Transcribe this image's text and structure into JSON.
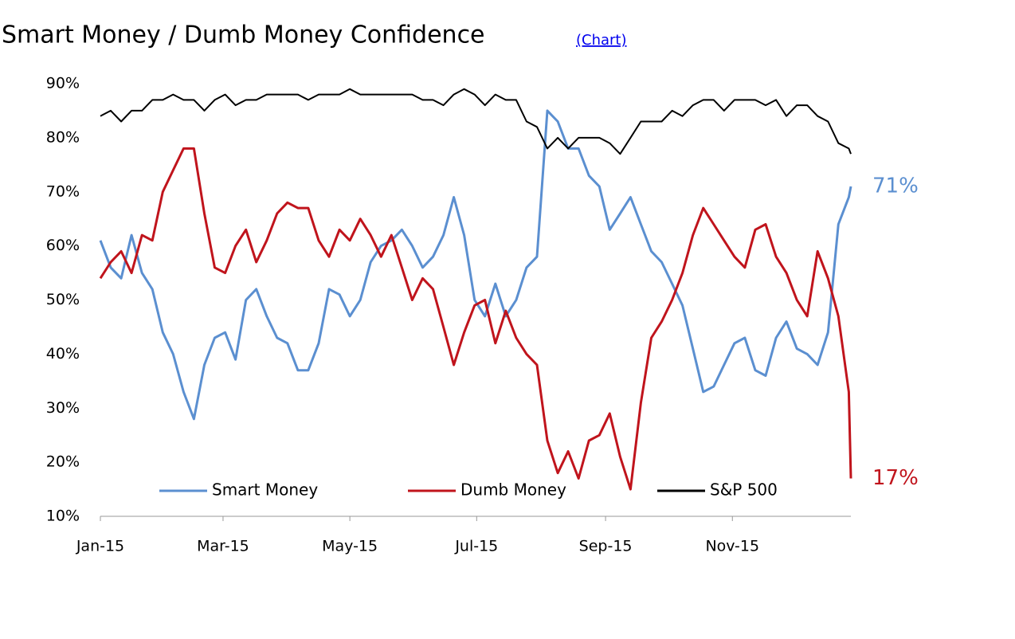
{
  "chart_data": {
    "type": "line",
    "title": "Smart Money / Dumb Money Confidence",
    "link": "(Chart)",
    "x": [
      0,
      5,
      10,
      15,
      20,
      25,
      30,
      35,
      40,
      45,
      50,
      55,
      60,
      65,
      70,
      75,
      80,
      85,
      90,
      95,
      100,
      105,
      110,
      115,
      120,
      125,
      130,
      135,
      140,
      145,
      150,
      155,
      160,
      165,
      170,
      175,
      180,
      185,
      190,
      195,
      200,
      205,
      210,
      215,
      220,
      225,
      230,
      235,
      240,
      245,
      250,
      255,
      260,
      265,
      270,
      275,
      280,
      285,
      290,
      295,
      300,
      305,
      310,
      315,
      320,
      325,
      330,
      335,
      340,
      345,
      350,
      355,
      360,
      361
    ],
    "xlim": [
      0,
      361
    ],
    "xticks": [
      {
        "value": 0,
        "label": "Jan-15"
      },
      {
        "value": 59,
        "label": "Mar-15"
      },
      {
        "value": 120,
        "label": "May-15"
      },
      {
        "value": 181,
        "label": "Jul-15"
      },
      {
        "value": 243,
        "label": "Sep-15"
      },
      {
        "value": 304,
        "label": "Nov-15"
      }
    ],
    "ylim": [
      10,
      90
    ],
    "yticks": [
      {
        "value": 10,
        "label": "10%"
      },
      {
        "value": 20,
        "label": "20%"
      },
      {
        "value": 30,
        "label": "30%"
      },
      {
        "value": 40,
        "label": "40%"
      },
      {
        "value": 50,
        "label": "50%"
      },
      {
        "value": 60,
        "label": "60%"
      },
      {
        "value": 70,
        "label": "70%"
      },
      {
        "value": 80,
        "label": "80%"
      },
      {
        "value": 90,
        "label": "90%"
      }
    ],
    "legend": "bottom",
    "series": [
      {
        "name": "Smart Money",
        "color": "#5b8fd0",
        "end_label": "71%",
        "values": [
          61,
          56,
          54,
          62,
          55,
          52,
          44,
          40,
          33,
          28,
          38,
          43,
          44,
          39,
          50,
          52,
          47,
          43,
          42,
          37,
          37,
          42,
          52,
          51,
          47,
          50,
          57,
          60,
          61,
          63,
          60,
          56,
          58,
          62,
          69,
          62,
          50,
          47,
          53,
          47,
          50,
          56,
          58,
          85,
          83,
          78,
          78,
          73,
          71,
          63,
          66,
          69,
          64,
          59,
          57,
          53,
          49,
          41,
          33,
          34,
          38,
          42,
          43,
          37,
          36,
          43,
          46,
          41,
          40,
          38,
          44,
          64,
          69,
          71
        ]
      },
      {
        "name": "Dumb Money",
        "color": "#c0141c",
        "end_label": "17%",
        "values": [
          54,
          57,
          59,
          55,
          62,
          61,
          70,
          74,
          78,
          78,
          66,
          56,
          55,
          60,
          63,
          57,
          61,
          66,
          68,
          67,
          67,
          61,
          58,
          63,
          61,
          65,
          62,
          58,
          62,
          56,
          50,
          54,
          52,
          45,
          38,
          44,
          49,
          50,
          42,
          48,
          43,
          40,
          38,
          24,
          18,
          22,
          17,
          24,
          25,
          29,
          21,
          15,
          31,
          43,
          46,
          50,
          55,
          62,
          67,
          64,
          61,
          58,
          56,
          63,
          64,
          58,
          55,
          50,
          47,
          59,
          54,
          47,
          33,
          17
        ]
      },
      {
        "name": "S&P 500",
        "color": "#000000",
        "values": [
          84,
          85,
          83,
          85,
          85,
          87,
          87,
          88,
          87,
          87,
          85,
          87,
          88,
          86,
          87,
          87,
          88,
          88,
          88,
          88,
          87,
          88,
          88,
          88,
          89,
          88,
          88,
          88,
          88,
          88,
          88,
          87,
          87,
          86,
          88,
          89,
          88,
          86,
          88,
          87,
          87,
          83,
          82,
          78,
          80,
          78,
          80,
          80,
          80,
          79,
          77,
          80,
          83,
          83,
          83,
          85,
          84,
          86,
          87,
          87,
          85,
          87,
          87,
          87,
          86,
          87,
          84,
          86,
          86,
          84,
          83,
          79,
          78,
          77
        ]
      }
    ]
  }
}
